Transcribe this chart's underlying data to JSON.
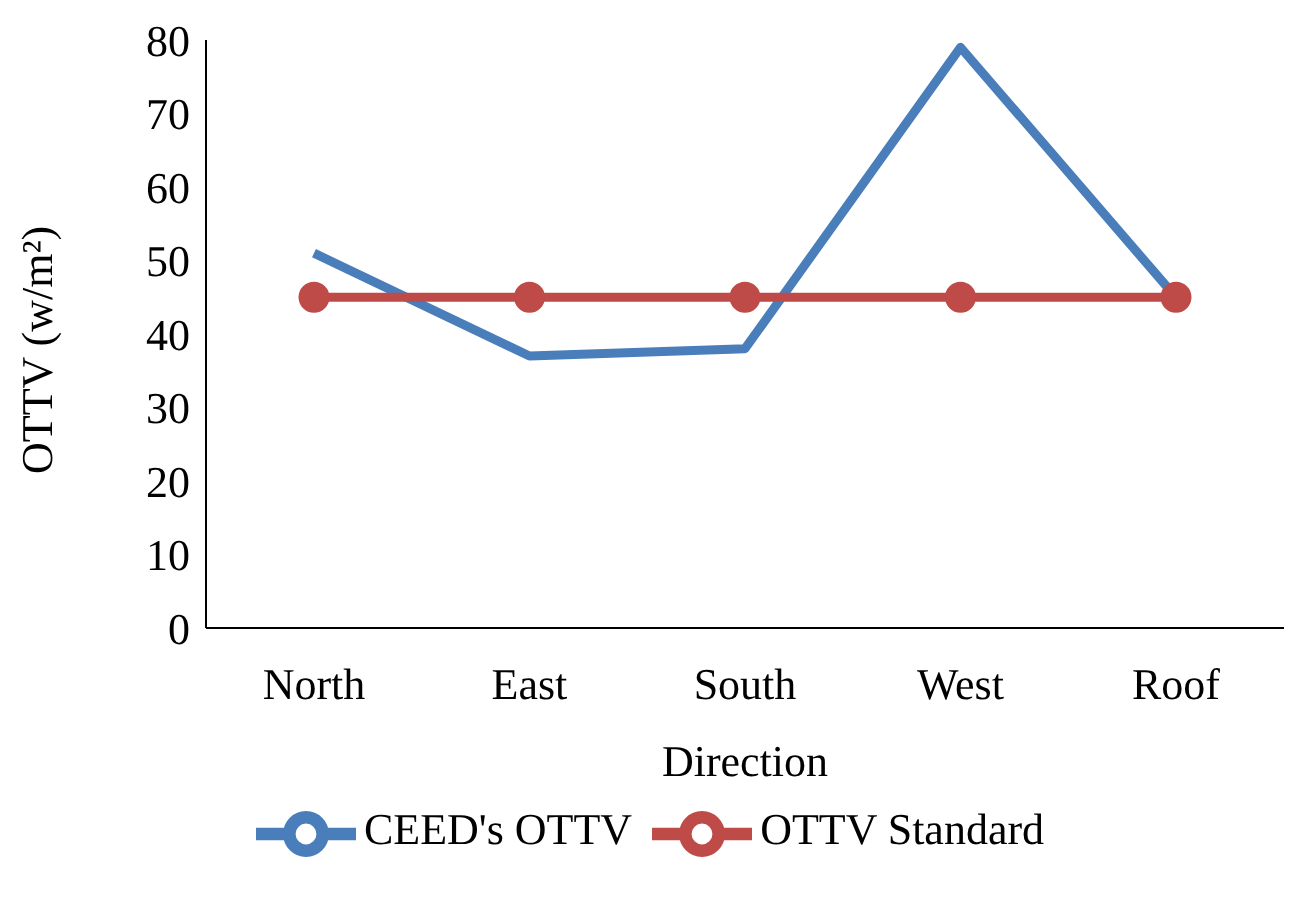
{
  "chart_data": {
    "type": "line",
    "xlabel": "Direction",
    "ylabel": "OTTV (w/m²)",
    "categories": [
      "North",
      "East",
      "South",
      "West",
      "Roof"
    ],
    "series": [
      {
        "name": "CEED's OTTV",
        "color": "#4a7ebb",
        "values": [
          51,
          37,
          38,
          79,
          45
        ],
        "marker": "none"
      },
      {
        "name": "OTTV Standard",
        "color": "#be4b48",
        "values": [
          45,
          45,
          45,
          45,
          45
        ],
        "marker": "circle"
      }
    ],
    "ylim": [
      0,
      80
    ],
    "yticks": [
      0,
      10,
      20,
      30,
      40,
      50,
      60,
      70,
      80
    ],
    "grid": false,
    "legend": "bottom",
    "line_style": "solid"
  }
}
